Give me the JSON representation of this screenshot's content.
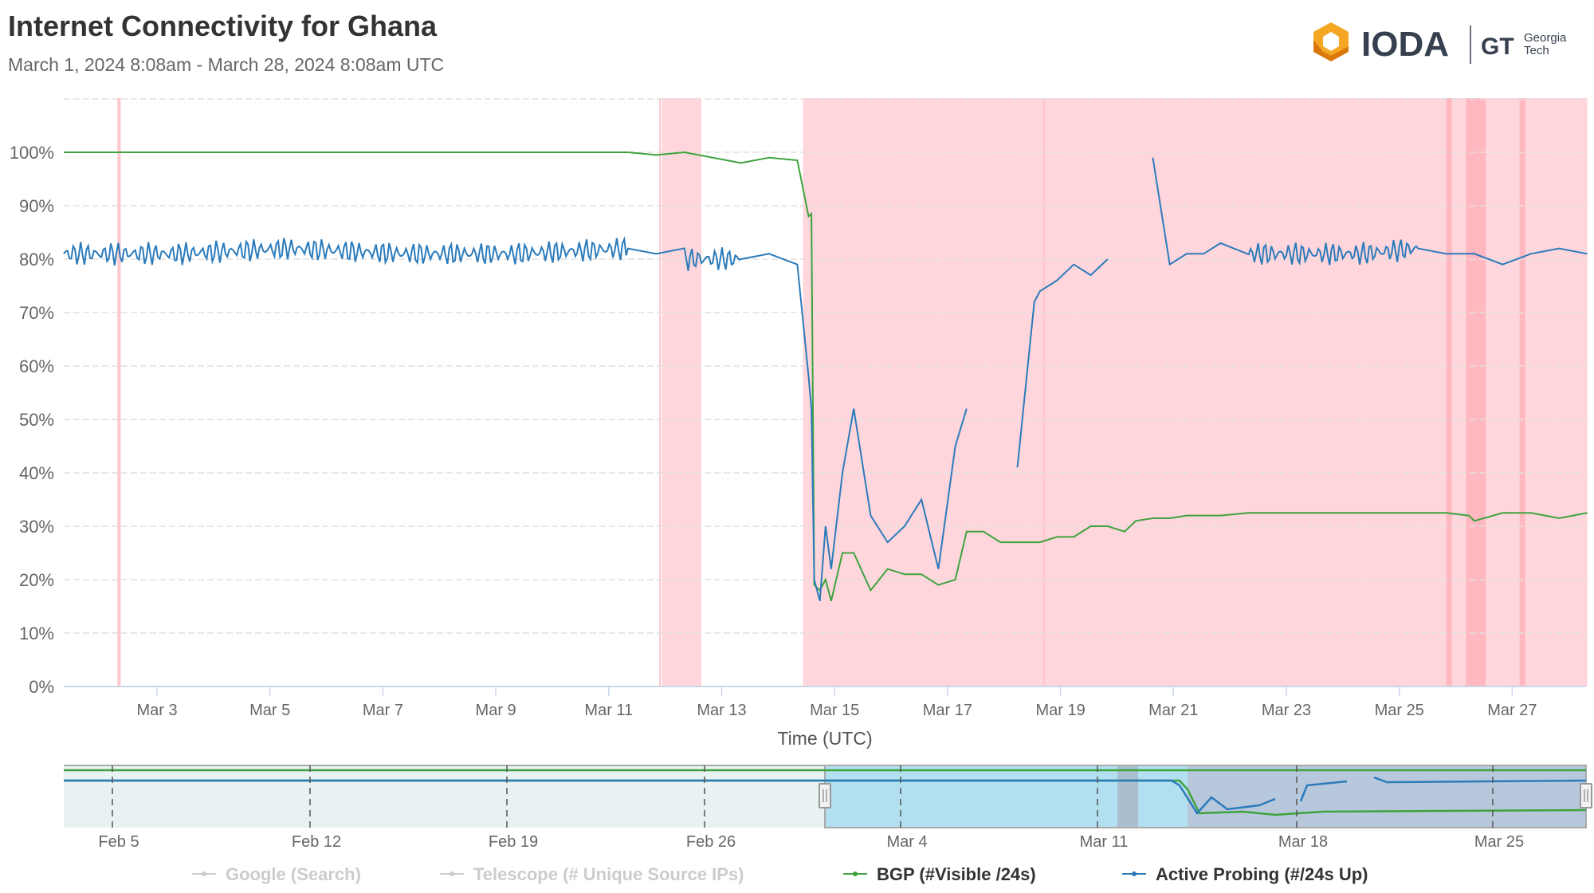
{
  "header": {
    "title": "Internet Connectivity for Ghana",
    "subtitle": "March 1, 2024 8:08am - March 28, 2024 8:08am UTC"
  },
  "logo": {
    "ioda_text": "IODA",
    "partner_line1": "Georgia",
    "partner_line2": "Tech",
    "partner_mark": "GT",
    "ioda_colors": [
      "#f5a623",
      "#d9770b"
    ],
    "text_color": "#37404f"
  },
  "colors": {
    "bgp": "#3ea33e",
    "active_probing": "#2b7bbb",
    "outage_band": "#ffd6dc",
    "outage_band_strong": "#ffb8c0",
    "grid": "#e0e0e0",
    "axis": "#ccd6eb",
    "navigator_selection": "#b3e0f0"
  },
  "chart_data": {
    "type": "line",
    "title": "Internet Connectivity for Ghana",
    "subtitle": "March 1, 2024 8:08am - March 28, 2024 8:08am UTC",
    "xlabel": "Time (UTC)",
    "ylabel": "",
    "ylim": [
      0,
      110
    ],
    "yticks": [
      "0%",
      "10%",
      "20%",
      "30%",
      "40%",
      "50%",
      "60%",
      "70%",
      "80%",
      "90%",
      "100%"
    ],
    "xticks": [
      "Mar 3",
      "Mar 5",
      "Mar 7",
      "Mar 9",
      "Mar 11",
      "Mar 13",
      "Mar 15",
      "Mar 17",
      "Mar 19",
      "Mar 21",
      "Mar 23",
      "Mar 25",
      "Mar 27"
    ],
    "grid": true,
    "legend_position": "bottom",
    "x_day_offsets": [
      0,
      2,
      4,
      6,
      8,
      10,
      10.5,
      11,
      12,
      12.5,
      13,
      13.2,
      13.25,
      13.3,
      13.4,
      13.5,
      13.6,
      13.8,
      14.0,
      14.3,
      14.6,
      14.9,
      15.2,
      15.5,
      15.8,
      16.0,
      16.3,
      16.6,
      16.9,
      17.2,
      17.3,
      17.6,
      17.9,
      18.2,
      18.5,
      18.8,
      19.0,
      19.3,
      19.6,
      19.9,
      20.2,
      20.5,
      21,
      22,
      23,
      24,
      24.5,
      24.9,
      25,
      25.5,
      26,
      26.5,
      27
    ],
    "series": [
      {
        "name": "BGP (#Visible /24s)",
        "values": [
          100,
          100,
          100,
          100,
          100,
          100,
          99.5,
          100,
          98,
          99,
          98.5,
          88,
          88.5,
          19,
          18,
          20,
          16,
          25,
          25,
          18,
          22,
          21,
          21,
          19,
          20,
          29,
          29,
          27,
          27,
          27,
          27,
          28,
          28,
          30,
          30,
          29,
          31,
          31.5,
          31.5,
          32,
          32,
          32,
          32.5,
          32.5,
          32.5,
          32.5,
          32.5,
          32,
          31,
          32.5,
          32.5,
          31.5,
          32.5
        ]
      },
      {
        "name": "Active Probing (#/24s Up)",
        "values": [
          81,
          81,
          82,
          81,
          81,
          82,
          81,
          80,
          80,
          81,
          79,
          58,
          52,
          20,
          16,
          30,
          22,
          40,
          52,
          32,
          27,
          30,
          35,
          22,
          45,
          52,
          null,
          null,
          41,
          72,
          74,
          76,
          79,
          77,
          80,
          null,
          null,
          99,
          79,
          81,
          81,
          83,
          81,
          81,
          81,
          82,
          81,
          81,
          81,
          79,
          81,
          82,
          81
        ]
      }
    ],
    "outage_bands_days": [
      [
        10.6,
        11.3
      ],
      [
        13.1,
        27
      ]
    ],
    "navigator": {
      "xticks": [
        "Feb 5",
        "Feb 12",
        "Feb 19",
        "Feb 26",
        "Mar 4",
        "Mar 11",
        "Mar 18",
        "Mar 25"
      ],
      "selected_range": [
        "Mar 1",
        "Mar 28"
      ]
    }
  },
  "legend": {
    "items": [
      {
        "label": "Google (Search)",
        "color": "#cccccc",
        "enabled": false
      },
      {
        "label": "Telescope (# Unique Source IPs)",
        "color": "#cccccc",
        "enabled": false
      },
      {
        "label": "BGP (#Visible /24s)",
        "color": "#3ea33e",
        "enabled": true
      },
      {
        "label": "Active Probing (#/24s Up)",
        "color": "#2b7bbb",
        "enabled": true
      }
    ]
  }
}
